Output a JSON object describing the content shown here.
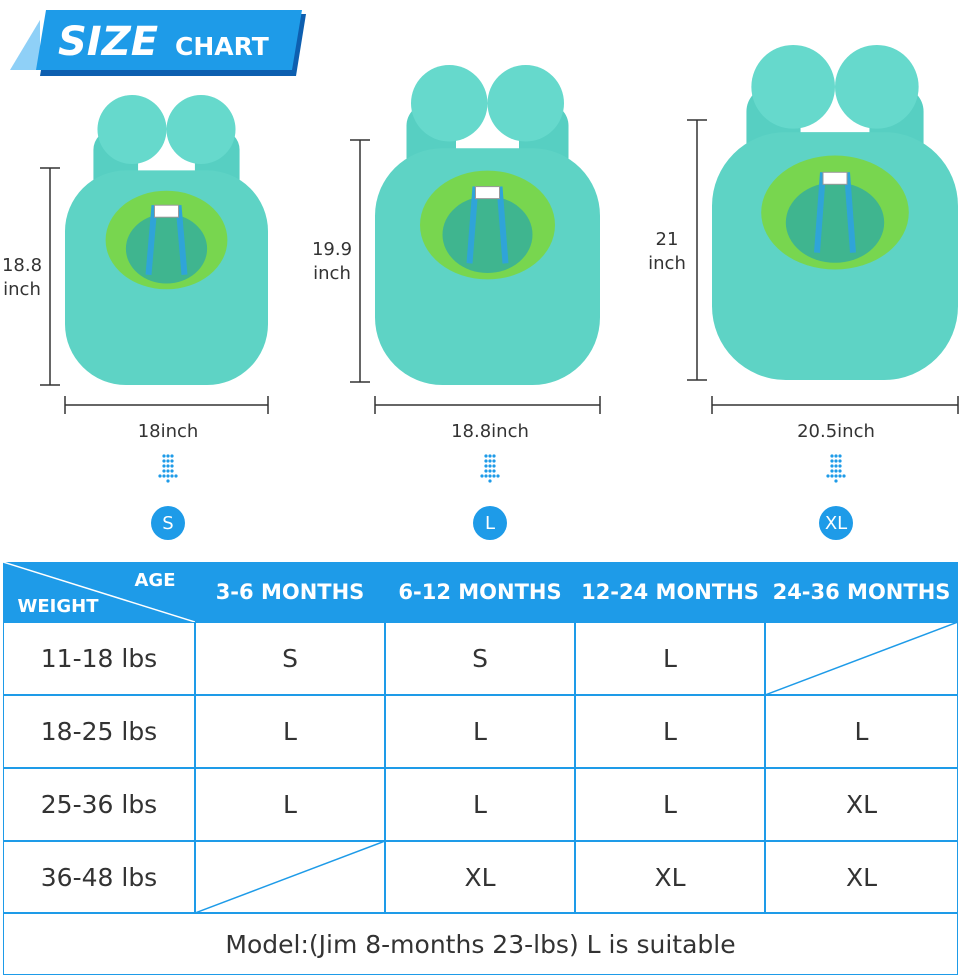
{
  "header": {
    "title_bold": "SIZE",
    "title_rest": "CHART"
  },
  "products": [
    {
      "height_value": "18.8",
      "height_unit": "inch",
      "width": "18inch",
      "size": "S"
    },
    {
      "height_value": "19.9",
      "height_unit": "inch",
      "width": "18.8inch",
      "size": "L"
    },
    {
      "height_value": "21",
      "height_unit": "inch",
      "width": "20.5inch",
      "size": "XL"
    }
  ],
  "table": {
    "corner_top": "AGE",
    "corner_bottom": "WEIGHT",
    "columns": [
      "3-6 MONTHS",
      "6-12 MONTHS",
      "12-24 MONTHS",
      "24-36 MONTHS"
    ],
    "rows": [
      {
        "label": "11-18 lbs",
        "cells": [
          "S",
          "S",
          "L",
          null
        ]
      },
      {
        "label": "18-25 lbs",
        "cells": [
          "L",
          "L",
          "L",
          "L"
        ]
      },
      {
        "label": "25-36 lbs",
        "cells": [
          "L",
          "L",
          "L",
          "XL"
        ]
      },
      {
        "label": "36-48 lbs",
        "cells": [
          null,
          "XL",
          "XL",
          "XL"
        ]
      }
    ],
    "footer": "Model:(Jim 8-months 23-lbs) L is suitable"
  }
}
